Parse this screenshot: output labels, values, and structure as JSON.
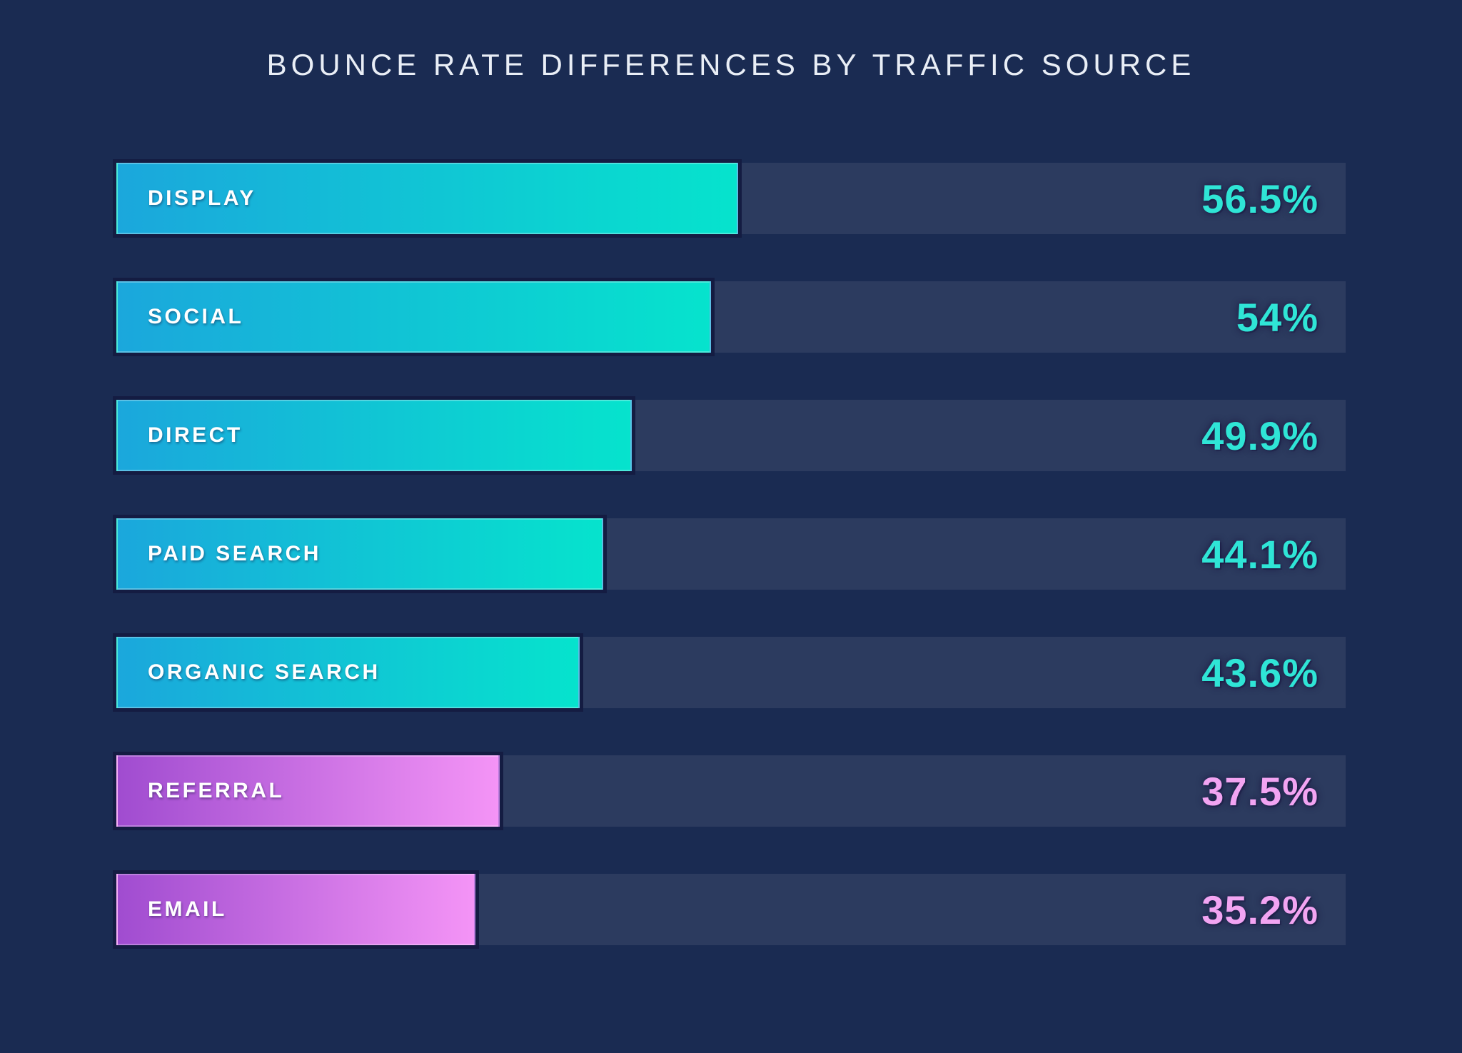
{
  "title": "BOUNCE RATE DIFFERENCES BY TRAFFIC SOURCE",
  "palette": {
    "background": "#1a2b52",
    "track": "#2c3b5f",
    "teal_bar_start": "#1ba7dc",
    "teal_bar_end": "#06e3cd",
    "purple_bar_start": "#a04cd0",
    "purple_bar_end": "#f494f6",
    "teal_value_text": "#2fe5d6",
    "pink_value_text": "#f2a4f2",
    "label_text": "#ffffff",
    "title_text": "#e9eef6",
    "bar_outline": "#141c42"
  },
  "chart_data": {
    "type": "bar",
    "orientation": "horizontal",
    "title": "BOUNCE RATE DIFFERENCES BY TRAFFIC SOURCE",
    "xlabel": "",
    "ylabel": "",
    "value_unit": "%",
    "grid": false,
    "legend": false,
    "value_labels_position": "right-aligned-on-track",
    "categories": [
      "DISPLAY",
      "SOCIAL",
      "DIRECT",
      "PAID SEARCH",
      "ORGANIC SEARCH",
      "REFERRAL",
      "EMAIL"
    ],
    "values": [
      56.5,
      54,
      49.9,
      44.1,
      43.6,
      37.5,
      35.2
    ],
    "rows": [
      {
        "label": "DISPLAY",
        "value": 56.5,
        "value_label": "56.5%",
        "theme": "teal",
        "bar_pct": 50.6
      },
      {
        "label": "SOCIAL",
        "value": 54,
        "value_label": "54%",
        "theme": "teal",
        "bar_pct": 48.4
      },
      {
        "label": "DIRECT",
        "value": 49.9,
        "value_label": "49.9%",
        "theme": "teal",
        "bar_pct": 41.9
      },
      {
        "label": "PAID SEARCH",
        "value": 44.1,
        "value_label": "44.1%",
        "theme": "teal",
        "bar_pct": 39.6
      },
      {
        "label": "ORGANIC SEARCH",
        "value": 43.6,
        "value_label": "43.6%",
        "theme": "teal",
        "bar_pct": 37.7
      },
      {
        "label": "REFERRAL",
        "value": 37.5,
        "value_label": "37.5%",
        "theme": "purple",
        "bar_pct": 31.2
      },
      {
        "label": "EMAIL",
        "value": 35.2,
        "value_label": "35.2%",
        "theme": "purple",
        "bar_pct": 29.2
      }
    ]
  }
}
